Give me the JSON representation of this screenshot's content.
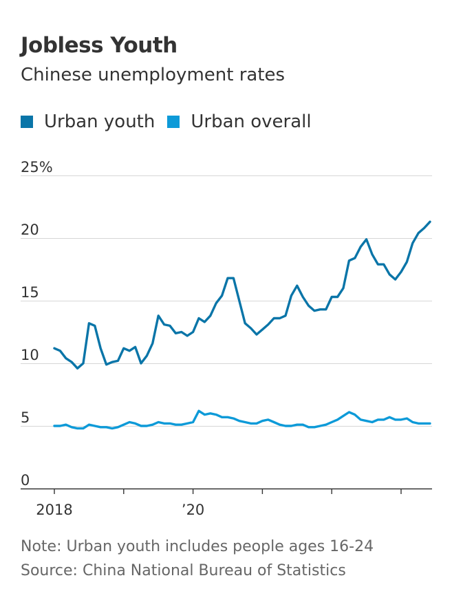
{
  "title": "Jobless Youth",
  "subtitle": "Chinese unemployment rates",
  "legend": [
    {
      "label": "Urban youth",
      "color": "#0a75a8"
    },
    {
      "label": "Urban overall",
      "color": "#0d9ad8"
    }
  ],
  "note": "Note: Urban youth includes people ages 16-24",
  "source": "Source: China National Bureau of Statistics",
  "chart_data": {
    "type": "line",
    "title": "Jobless Youth",
    "subtitle": "Chinese unemployment rates",
    "ylim": [
      0,
      25
    ],
    "y_ticks": [
      {
        "value": 25,
        "label": "25%"
      },
      {
        "value": 20,
        "label": "20"
      },
      {
        "value": 15,
        "label": "15"
      },
      {
        "value": 10,
        "label": "10"
      },
      {
        "value": 5,
        "label": "5"
      },
      {
        "value": 0,
        "label": "0"
      }
    ],
    "x_ticks": [
      {
        "x": "2018-01",
        "label": "2018"
      },
      {
        "x": "2019-01",
        "label": ""
      },
      {
        "x": "2020-01",
        "label": "’20"
      },
      {
        "x": "2021-01",
        "label": ""
      },
      {
        "x": "2022-01",
        "label": ""
      },
      {
        "x": "2023-01",
        "label": ""
      }
    ],
    "x_range": [
      "2018-01",
      "2023-06"
    ],
    "grid": true,
    "legend_position": "top-left",
    "x": [
      "2018-01",
      "2018-02",
      "2018-03",
      "2018-04",
      "2018-05",
      "2018-06",
      "2018-07",
      "2018-08",
      "2018-09",
      "2018-10",
      "2018-11",
      "2018-12",
      "2019-01",
      "2019-02",
      "2019-03",
      "2019-04",
      "2019-05",
      "2019-06",
      "2019-07",
      "2019-08",
      "2019-09",
      "2019-10",
      "2019-11",
      "2019-12",
      "2020-01",
      "2020-02",
      "2020-03",
      "2020-04",
      "2020-05",
      "2020-06",
      "2020-07",
      "2020-08",
      "2020-09",
      "2020-10",
      "2020-11",
      "2020-12",
      "2021-01",
      "2021-02",
      "2021-03",
      "2021-04",
      "2021-05",
      "2021-06",
      "2021-07",
      "2021-08",
      "2021-09",
      "2021-10",
      "2021-11",
      "2021-12",
      "2022-01",
      "2022-02",
      "2022-03",
      "2022-04",
      "2022-05",
      "2022-06",
      "2022-07",
      "2022-08",
      "2022-09",
      "2022-10",
      "2022-11",
      "2022-12",
      "2023-01",
      "2023-02",
      "2023-03",
      "2023-04",
      "2023-05",
      "2023-06"
    ],
    "series": [
      {
        "name": "Urban youth",
        "color": "#0a75a8",
        "values": [
          11.2,
          11.0,
          10.4,
          10.1,
          9.6,
          10.0,
          13.2,
          13.0,
          11.2,
          9.9,
          10.1,
          10.2,
          11.2,
          11.0,
          11.3,
          10.0,
          10.6,
          11.6,
          13.8,
          13.1,
          13.0,
          12.4,
          12.5,
          12.2,
          12.5,
          13.6,
          13.3,
          13.8,
          14.8,
          15.4,
          16.8,
          16.8,
          15.0,
          13.2,
          12.8,
          12.3,
          12.7,
          13.1,
          13.6,
          13.6,
          13.8,
          15.4,
          16.2,
          15.3,
          14.6,
          14.2,
          14.3,
          14.3,
          15.3,
          15.3,
          16.0,
          18.2,
          18.4,
          19.3,
          19.9,
          18.7,
          17.9,
          17.9,
          17.1,
          16.7,
          17.3,
          18.1,
          19.6,
          20.4,
          20.8,
          21.3
        ]
      },
      {
        "name": "Urban overall",
        "color": "#0d9ad8",
        "values": [
          5.0,
          5.0,
          5.1,
          4.9,
          4.8,
          4.8,
          5.1,
          5.0,
          4.9,
          4.9,
          4.8,
          4.9,
          5.1,
          5.3,
          5.2,
          5.0,
          5.0,
          5.1,
          5.3,
          5.2,
          5.2,
          5.1,
          5.1,
          5.2,
          5.3,
          6.2,
          5.9,
          6.0,
          5.9,
          5.7,
          5.7,
          5.6,
          5.4,
          5.3,
          5.2,
          5.2,
          5.4,
          5.5,
          5.3,
          5.1,
          5.0,
          5.0,
          5.1,
          5.1,
          4.9,
          4.9,
          5.0,
          5.1,
          5.3,
          5.5,
          5.8,
          6.1,
          5.9,
          5.5,
          5.4,
          5.3,
          5.5,
          5.5,
          5.7,
          5.5,
          5.5,
          5.6,
          5.3,
          5.2,
          5.2,
          5.2
        ]
      }
    ]
  }
}
